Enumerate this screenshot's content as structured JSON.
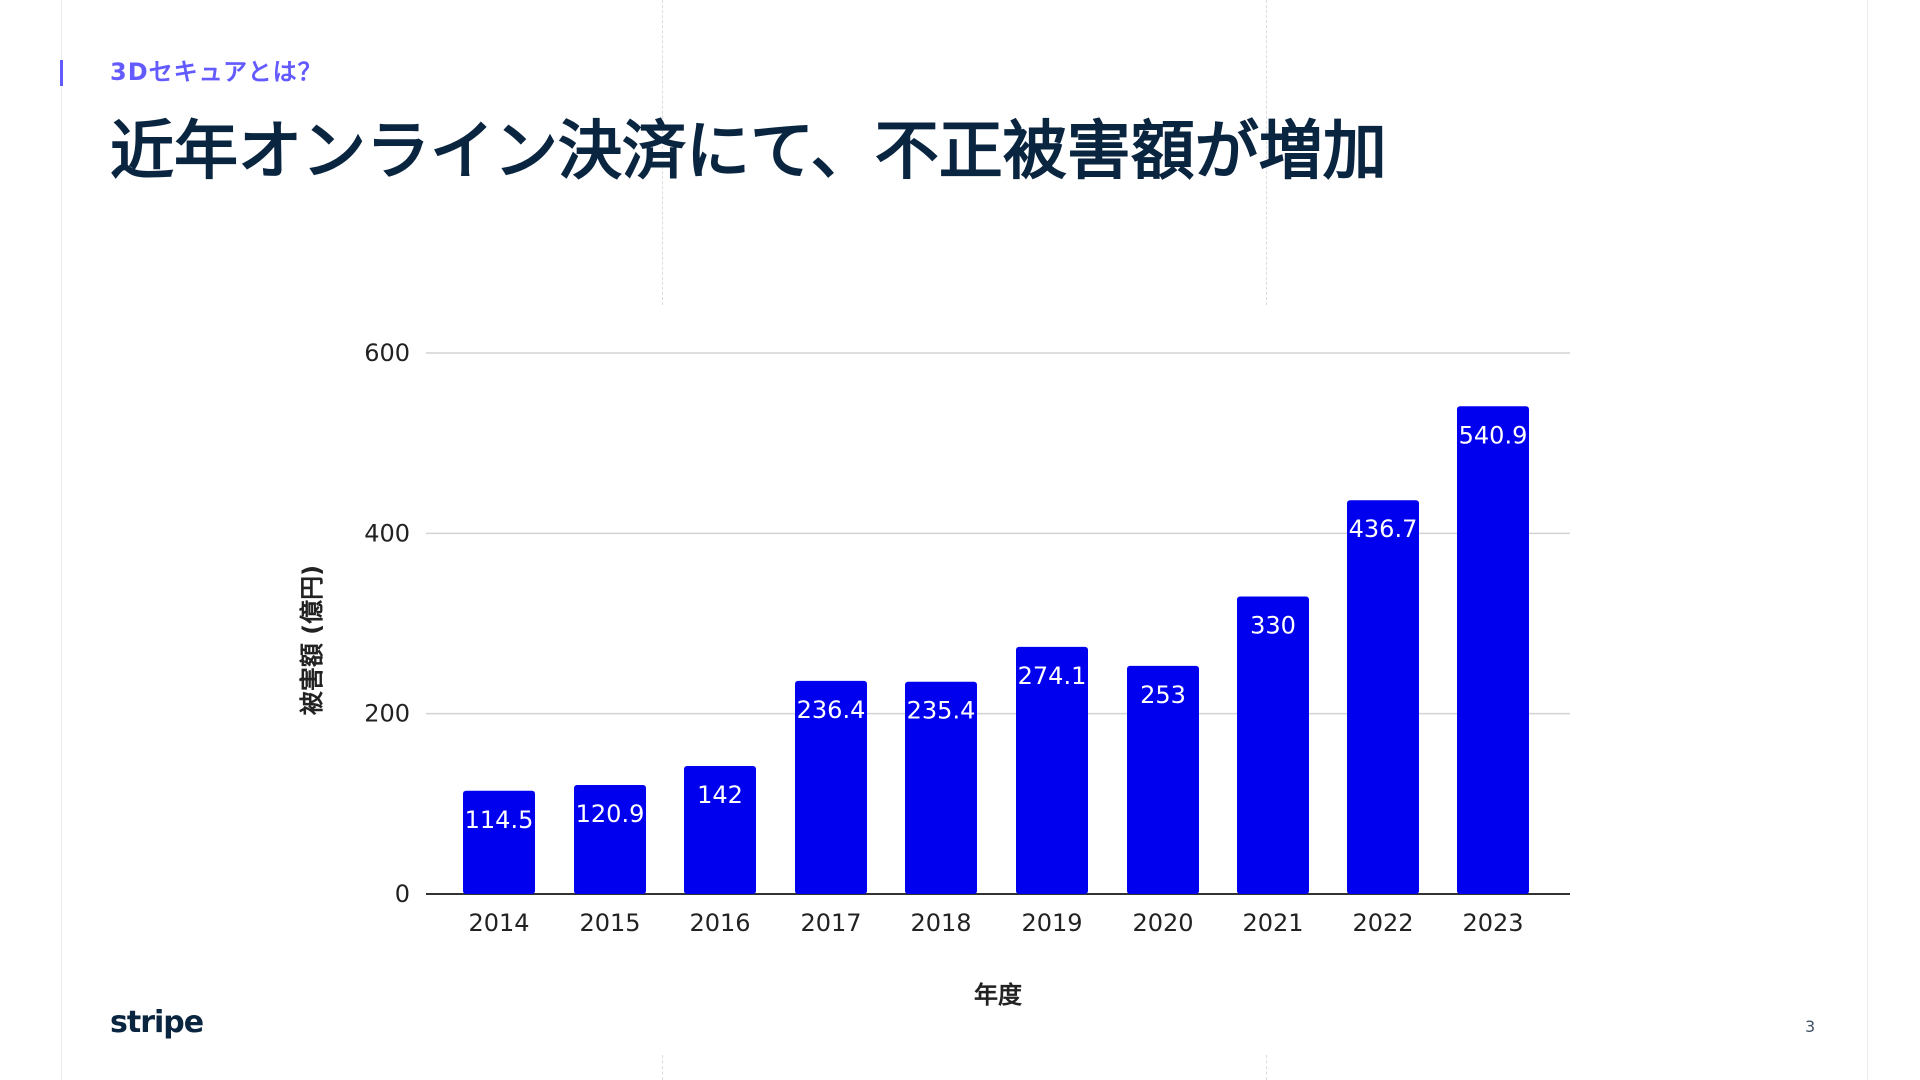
{
  "slide": {
    "eyebrow": "3Dセキュアとは？",
    "title": "近年オンライン決済にて、不正被害額が増加",
    "logo": "stripe",
    "page_number": "3"
  },
  "colors": {
    "accent": "#635bff",
    "title": "#0a2540",
    "bar": "#0000ee",
    "bar_label": "#ffffff",
    "grid": "#d3d3d3",
    "axis_text": "#222222"
  },
  "chart_data": {
    "type": "bar",
    "title": "",
    "xlabel": "年度",
    "ylabel": "被害額 (億円)",
    "categories": [
      "2014",
      "2015",
      "2016",
      "2017",
      "2018",
      "2019",
      "2020",
      "2021",
      "2022",
      "2023"
    ],
    "values": [
      114.5,
      120.9,
      142,
      236.4,
      235.4,
      274.1,
      253,
      330,
      436.7,
      540.9
    ],
    "value_labels": [
      "114.5",
      "120.9",
      "142",
      "236.4",
      "235.4",
      "274.1",
      "253",
      "330",
      "436.7",
      "540.9"
    ],
    "ylim": [
      0,
      600
    ],
    "yticks": [
      0,
      200,
      400,
      600
    ],
    "grid": true,
    "legend": "none"
  }
}
